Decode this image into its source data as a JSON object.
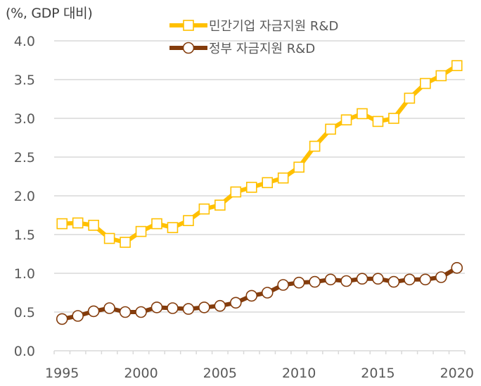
{
  "chart_data": {
    "type": "line",
    "title": "",
    "unit_label": "(%, GDP 대비)",
    "xlabel": "",
    "ylabel": "(%, GDP 대비)",
    "ylim": [
      0,
      4.0
    ],
    "yticks": [
      "0.0",
      "0.5",
      "1.0",
      "1.5",
      "2.0",
      "2.5",
      "3.0",
      "3.5",
      "4.0"
    ],
    "ytick_values": [
      0,
      0.5,
      1.0,
      1.5,
      2.0,
      2.5,
      3.0,
      3.5,
      4.0
    ],
    "x": [
      1995,
      1996,
      1997,
      1998,
      1999,
      2000,
      2001,
      2002,
      2003,
      2004,
      2005,
      2006,
      2007,
      2008,
      2009,
      2010,
      2011,
      2012,
      2013,
      2014,
      2015,
      2016,
      2017,
      2018,
      2019,
      2020
    ],
    "xtick_labels": [
      "1995",
      "2000",
      "2005",
      "2010",
      "2015",
      "2020"
    ],
    "xtick_values": [
      1995,
      2000,
      2005,
      2010,
      2015,
      2020
    ],
    "grid": "horizontal",
    "legend_position": "top-center",
    "series": [
      {
        "name": "민간기업 자금지원 R&D",
        "color": "#FFC000",
        "marker": "square",
        "values": [
          1.64,
          1.65,
          1.62,
          1.45,
          1.4,
          1.54,
          1.64,
          1.59,
          1.68,
          1.83,
          1.88,
          2.05,
          2.11,
          2.17,
          2.23,
          2.37,
          2.64,
          2.86,
          2.98,
          3.06,
          2.96,
          3.0,
          3.26,
          3.45,
          3.55,
          3.68
        ]
      },
      {
        "name": "정부 자금지원  R&D",
        "color": "#843C0C",
        "marker": "circle",
        "values": [
          0.41,
          0.45,
          0.51,
          0.55,
          0.5,
          0.5,
          0.56,
          0.55,
          0.54,
          0.56,
          0.58,
          0.62,
          0.71,
          0.75,
          0.85,
          0.88,
          0.89,
          0.92,
          0.9,
          0.93,
          0.93,
          0.89,
          0.92,
          0.92,
          0.95,
          1.07
        ]
      }
    ]
  },
  "colors": {
    "gridline": "#D9D9D9",
    "axis_text": "#595959"
  }
}
